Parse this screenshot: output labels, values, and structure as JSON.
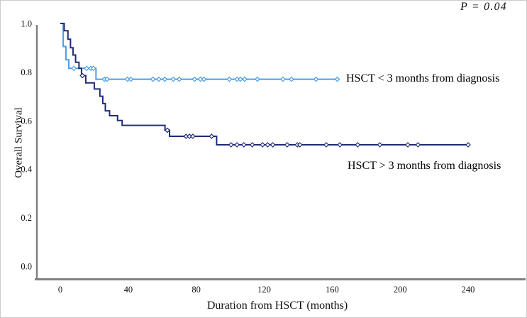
{
  "figure": {
    "p_value_label": "P = 0.04"
  },
  "chart_data": {
    "type": "line",
    "subtype": "kaplan-meier-step",
    "title": "",
    "xlabel": "Duration from HSCT (months)",
    "ylabel": "Overall Survival",
    "annotation": "P = 0.04",
    "xlim": [
      -14,
      272
    ],
    "ylim": [
      0.0,
      1.05
    ],
    "x_ticks": [
      0,
      40,
      80,
      120,
      160,
      200,
      240
    ],
    "y_ticks": [
      "0.0",
      "0.2",
      "0.4",
      "0.6",
      "0.8",
      "1.0"
    ],
    "grid": false,
    "legend_position": "inline-labels",
    "axis_color": "#808080",
    "series": [
      {
        "name": "HSCT < 3 months from diagnosis",
        "color": "#4d9ee4",
        "steps": [
          [
            0,
            1.0
          ],
          [
            1.7,
            0.905
          ],
          [
            3.3,
            0.85
          ],
          [
            5,
            0.815
          ],
          [
            21,
            0.77
          ]
        ],
        "end_time": 163,
        "censor_times": [
          8,
          15.5,
          18,
          19.5,
          26,
          27.5,
          39.5,
          41.5,
          54.5,
          58,
          61.5,
          66.5,
          70,
          79,
          82.5,
          84.5,
          99.5,
          104,
          106,
          108.5,
          116,
          131,
          136,
          150.5,
          163
        ]
      },
      {
        "name": "HSCT > 3 months from diagnosis",
        "color": "#202b76",
        "steps": [
          [
            0,
            1.0
          ],
          [
            2.3,
            0.97
          ],
          [
            4.5,
            0.935
          ],
          [
            6,
            0.9
          ],
          [
            7.5,
            0.87
          ],
          [
            9,
            0.84
          ],
          [
            11,
            0.815
          ],
          [
            12.5,
            0.785
          ],
          [
            15,
            0.755
          ],
          [
            20,
            0.73
          ],
          [
            23.3,
            0.7
          ],
          [
            25,
            0.67
          ],
          [
            26.5,
            0.64
          ],
          [
            29,
            0.62
          ],
          [
            33.7,
            0.6
          ],
          [
            36.4,
            0.58
          ],
          [
            61.6,
            0.56
          ],
          [
            64.3,
            0.535
          ],
          [
            92,
            0.5
          ]
        ],
        "end_time": 240,
        "censor_times": [
          13,
          63,
          74,
          76,
          78,
          89,
          100.5,
          104,
          108,
          113,
          119,
          122,
          125,
          133.5,
          139.5,
          141,
          156.5,
          164.5,
          175,
          188,
          204.5,
          210.5,
          240
        ]
      }
    ]
  }
}
